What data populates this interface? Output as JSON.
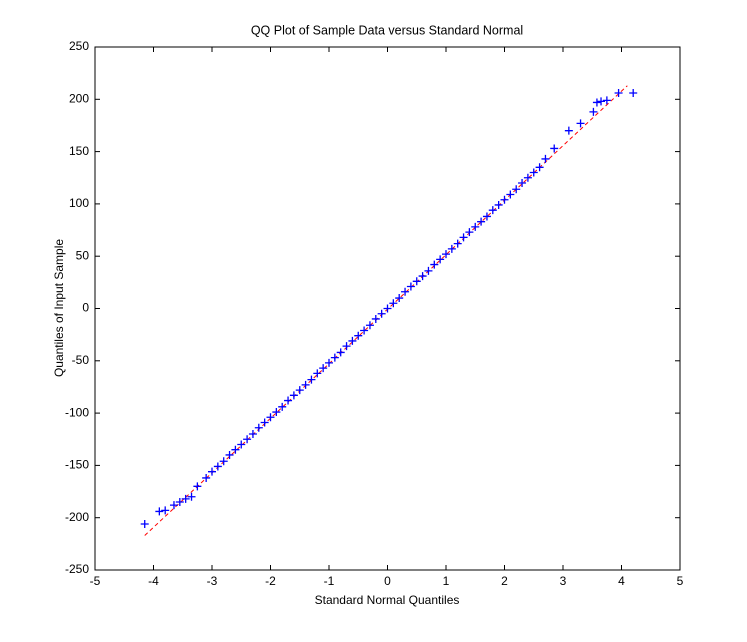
{
  "chart_data": {
    "type": "scatter",
    "title": "QQ Plot of Sample Data versus Standard Normal",
    "x_label": "Standard Normal Quantiles",
    "y_label": "Quantiles of Input Sample",
    "xlim": [
      -5,
      5
    ],
    "xticks": [
      -5,
      -4,
      -3,
      -2,
      -1,
      0,
      1,
      2,
      3,
      4,
      5
    ],
    "ylim": [
      -250,
      250
    ],
    "yticks": [
      -250,
      -200,
      -150,
      -100,
      -50,
      0,
      50,
      100,
      150,
      200,
      250
    ],
    "grid": false,
    "series": [
      {
        "color": "#0000ff",
        "marker": "+",
        "x": [
          -4.15,
          -3.9,
          -3.8,
          -3.65,
          -3.55,
          -3.45,
          -3.35,
          -3.25,
          -3.1,
          -3,
          -2.9,
          -2.8,
          -2.7,
          -2.6,
          -2.5,
          -2.4,
          -2.3,
          -2.2,
          -2.1,
          -2,
          -1.9,
          -1.8,
          -1.7,
          -1.6,
          -1.5,
          -1.4,
          -1.3,
          -1.2,
          -1.1,
          -1,
          -0.9,
          -0.8,
          -0.7,
          -0.6,
          -0.5,
          -0.4,
          -0.3,
          -0.2,
          -0.1,
          0,
          0.1,
          0.2,
          0.3,
          0.4,
          0.5,
          0.6,
          0.7,
          0.8,
          0.9,
          1,
          1.1,
          1.2,
          1.3,
          1.4,
          1.5,
          1.6,
          1.7,
          1.8,
          1.9,
          2,
          2.1,
          2.2,
          2.3,
          2.4,
          2.5,
          2.6,
          2.7,
          2.85,
          3.1,
          3.3,
          3.52,
          3.58,
          3.65,
          3.75,
          3.95,
          4.2
        ],
        "values": [
          -206,
          -194,
          -193,
          -188,
          -185,
          -182,
          -180,
          -170,
          -162,
          -156,
          -151,
          -146,
          -140,
          -135,
          -130,
          -125,
          -120,
          -114,
          -109,
          -104,
          -99,
          -94,
          -88,
          -83,
          -78,
          -73,
          -68,
          -62,
          -57,
          -52,
          -47,
          -42,
          -36,
          -31,
          -26,
          -21,
          -16,
          -10,
          -5,
          0,
          5,
          10,
          16,
          21,
          26,
          31,
          36,
          42,
          47,
          52,
          57,
          62,
          68,
          73,
          78,
          83,
          88,
          94,
          99,
          104,
          109,
          114,
          120,
          125,
          130,
          135,
          143,
          153,
          170,
          177,
          188,
          197,
          198,
          199,
          206,
          206
        ]
      }
    ],
    "reference_line": {
      "color": "#ff0000",
      "x": [
        -4.15,
        4.1
      ],
      "y": [
        -217,
        213
      ]
    }
  }
}
